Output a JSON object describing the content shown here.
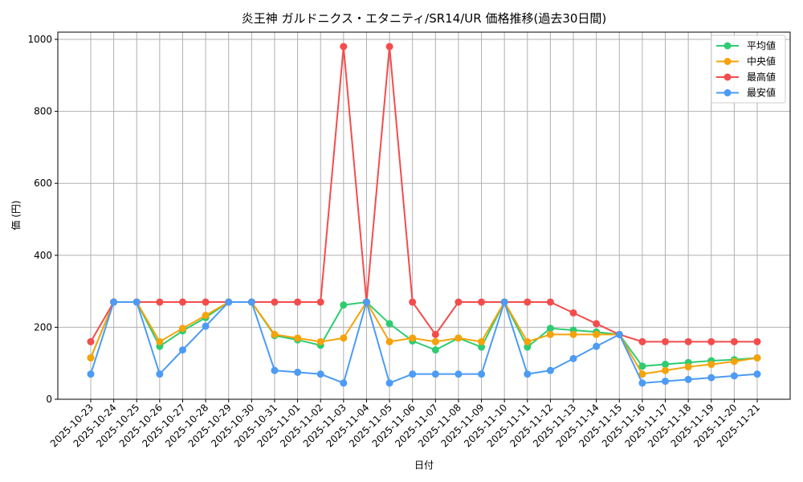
{
  "chart_data": {
    "type": "line",
    "title": "炎王神 ガルドニクス・エタニティ/SR14/UR 価格推移(過去30日間)",
    "xlabel": "日付",
    "ylabel": "価 (円)",
    "ylim": [
      0,
      1000
    ],
    "yticks": [
      0,
      200,
      400,
      600,
      800,
      1000
    ],
    "grid": true,
    "legend_position": "upper right",
    "x": [
      "2025-10-23",
      "2025-10-24",
      "2025-10-25",
      "2025-10-26",
      "2025-10-27",
      "2025-10-28",
      "2025-10-29",
      "2025-10-30",
      "2025-10-31",
      "2025-11-01",
      "2025-11-02",
      "2025-11-03",
      "2025-11-04",
      "2025-11-05",
      "2025-11-06",
      "2025-11-07",
      "2025-11-08",
      "2025-11-09",
      "2025-11-10",
      "2025-11-11",
      "2025-11-12",
      "2025-11-13",
      "2025-11-14",
      "2025-11-15",
      "2025-11-16",
      "2025-11-17",
      "2025-11-18",
      "2025-11-19",
      "2025-11-20",
      "2025-11-21"
    ],
    "series": [
      {
        "name": "平均値",
        "color": "#2ecc71",
        "values": [
          115,
          270,
          270,
          147,
          190,
          227,
          270,
          270,
          177,
          165,
          150,
          262,
          270,
          210,
          162,
          137,
          170,
          145,
          270,
          145,
          197,
          192,
          187,
          180,
          92,
          97,
          102,
          107,
          110,
          115
        ]
      },
      {
        "name": "中央値",
        "color": "#f5a30a",
        "values": [
          115,
          270,
          270,
          160,
          197,
          233,
          270,
          270,
          180,
          170,
          160,
          170,
          270,
          160,
          170,
          160,
          170,
          160,
          270,
          160,
          180,
          180,
          180,
          180,
          70,
          80,
          90,
          97,
          105,
          115
        ]
      },
      {
        "name": "最高値",
        "color": "#f44c4c",
        "values": [
          160,
          270,
          270,
          270,
          270,
          270,
          270,
          270,
          270,
          270,
          270,
          980,
          270,
          980,
          270,
          180,
          270,
          270,
          270,
          270,
          270,
          240,
          210,
          180,
          160,
          160,
          160,
          160,
          160,
          160
        ]
      },
      {
        "name": "最安値",
        "color": "#4c9bf4",
        "values": [
          70,
          270,
          270,
          70,
          137,
          203,
          270,
          270,
          80,
          75,
          70,
          45,
          270,
          45,
          70,
          70,
          70,
          70,
          270,
          70,
          80,
          113,
          147,
          180,
          45,
          50,
          55,
          60,
          65,
          70
        ]
      }
    ]
  }
}
